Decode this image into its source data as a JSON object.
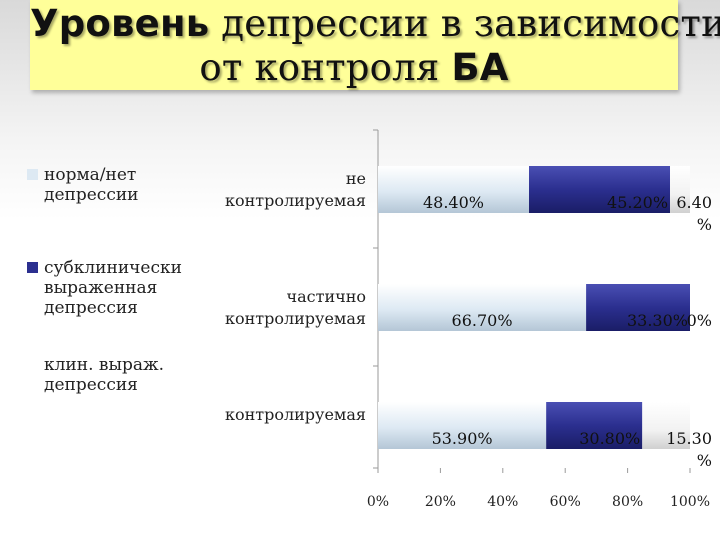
{
  "slide": {
    "title_line1_sans": "Уровень",
    "title_line1_serif": "депрессии в зависимости",
    "title_line2_serif": "от контроля",
    "title_line2_sans": "БА"
  },
  "chart_data": {
    "type": "bar",
    "orientation": "horizontal",
    "stacked": "percent",
    "categories": [
      "не контролируемая",
      "частично контролируемая",
      "контролируемая"
    ],
    "category_lines": [
      [
        "не",
        "контролируемая"
      ],
      [
        "частично",
        "контролируемая"
      ],
      [
        "контролируемая"
      ]
    ],
    "series": [
      {
        "name": "норма/нет депрессии",
        "name_lines": [
          "норма/нет",
          "депрессии"
        ],
        "values": [
          48.4,
          66.7,
          53.9
        ],
        "labels": [
          "48.40%",
          "66.70%",
          "53.90%"
        ],
        "color": "#dde9f3"
      },
      {
        "name": "субклинически выраженная депрессия",
        "name_lines": [
          "субклинически",
          "выраженная",
          "депрессия"
        ],
        "values": [
          45.2,
          33.3,
          30.8
        ],
        "labels": [
          "45.20%",
          "33.30%",
          "30.80%"
        ],
        "color": "#2b2f8f"
      },
      {
        "name": "клин. выраж. депрессия",
        "name_lines": [
          "клин. выраж.",
          "депрессия"
        ],
        "values": [
          6.4,
          0,
          15.3
        ],
        "labels": [
          "6.40\n%",
          "0%",
          "15.30\n%"
        ],
        "color": "#f2f2f2"
      }
    ],
    "xaxis": {
      "range": [
        0,
        100
      ],
      "ticks": [
        0,
        20,
        40,
        60,
        80,
        100
      ],
      "tick_labels": [
        "0%",
        "20%",
        "40%",
        "60%",
        "80%",
        "100%"
      ]
    },
    "legend_position": "left",
    "grid": false
  }
}
